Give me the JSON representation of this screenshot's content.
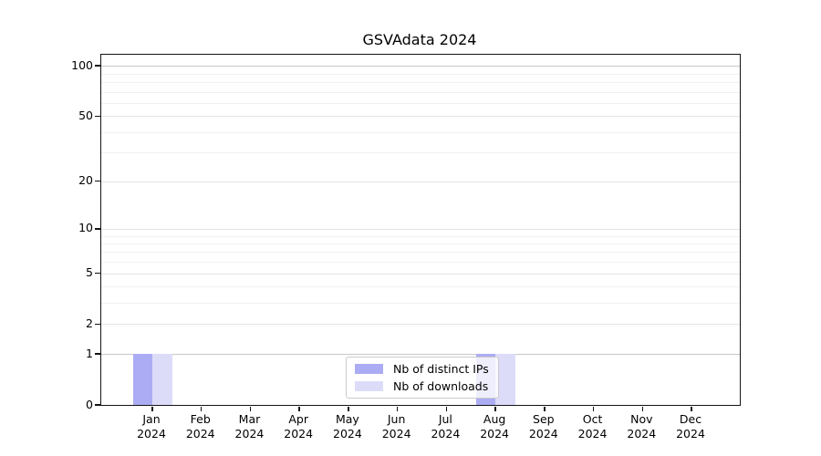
{
  "figure": {
    "background": "#ffffff"
  },
  "chart_data": {
    "type": "bar",
    "title": "GSVAdata 2024",
    "categories": [
      "Jan",
      "Feb",
      "Mar",
      "Apr",
      "May",
      "Jun",
      "Jul",
      "Aug",
      "Sep",
      "Oct",
      "Nov",
      "Dec"
    ],
    "category_year": "2024",
    "series": [
      {
        "name": "Nb of distinct IPs",
        "color": "#acacf4",
        "values": [
          1,
          0,
          0,
          0,
          0,
          0,
          0,
          1,
          0,
          0,
          0,
          0
        ]
      },
      {
        "name": "Nb of downloads",
        "color": "#dcdcf9",
        "values": [
          1,
          0,
          0,
          0,
          0,
          0,
          0,
          1,
          0,
          0,
          0,
          0
        ]
      }
    ],
    "yscale": "log1p",
    "yticks": [
      0,
      1,
      2,
      5,
      10,
      20,
      50,
      100
    ],
    "minor_gridlines": [
      3,
      4,
      6,
      7,
      8,
      9,
      30,
      40,
      60,
      70,
      80,
      90
    ],
    "emphasized_gridlines": [
      1,
      100
    ],
    "ylim": [
      0,
      117
    ],
    "xlabel": "",
    "ylabel": "",
    "grid": true,
    "legend": {
      "position": "lower-center-inside",
      "background": "rgba(255,255,255,0.8)",
      "border_color": "#cbcbcb"
    }
  },
  "colors": {
    "grid_minor": "#f1f1f1",
    "grid_major": "#e4e4e4",
    "grid_emphasized": "#c7c7c7",
    "spine": "#141414",
    "text": "#000000"
  }
}
